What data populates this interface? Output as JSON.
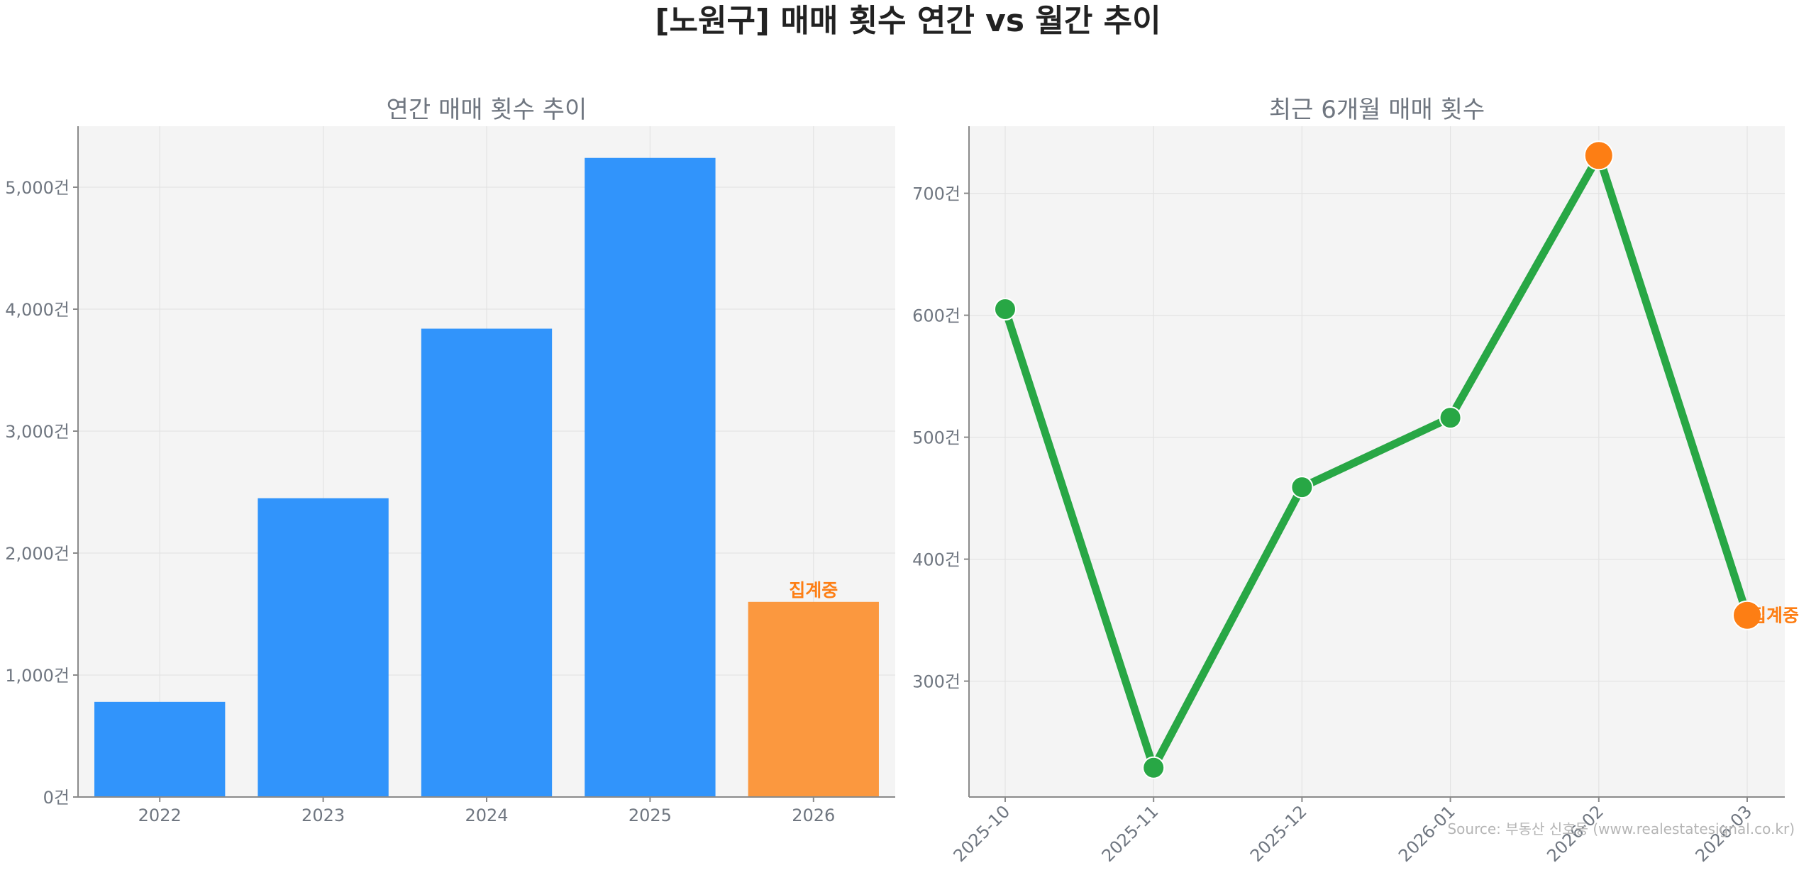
{
  "suptitle": "[노원구] 매매 횟수 연간 vs 월간 추이",
  "source": "Source: 부동산 신호등 (www.realestatesignal.co.kr)",
  "colors": {
    "bar": "#3194fb",
    "bar_partial": "#fb983f",
    "line": "#28a745",
    "point_partial": "#fd7e14",
    "annotation": "#fd7e14",
    "panel_bg": "#f4f4f4"
  },
  "chart_data": [
    {
      "type": "bar",
      "title": "연간 매매 횟수 추이",
      "categories": [
        "2022",
        "2023",
        "2024",
        "2025",
        "2026"
      ],
      "values": [
        780,
        2450,
        3840,
        5240,
        1600
      ],
      "partial_index": 4,
      "annotation": "집계중",
      "ylim": [
        0,
        5500
      ],
      "yticks": [
        0,
        1000,
        2000,
        3000,
        4000,
        5000
      ],
      "ytick_labels": [
        "0건",
        "1,000건",
        "2,000건",
        "3,000건",
        "4,000건",
        "5,000건"
      ],
      "grid": true
    },
    {
      "type": "line",
      "title": "최근 6개월 매매 횟수",
      "categories": [
        "2025-10",
        "2025-11",
        "2025-12",
        "2026-01",
        "2026-02",
        "2026-03"
      ],
      "values": [
        605,
        229,
        459,
        516,
        731,
        354
      ],
      "highlight_indices": [
        4,
        5
      ],
      "annotation": "집계중",
      "annotation_index": 5,
      "ylim": [
        205,
        755
      ],
      "yticks": [
        300,
        400,
        500,
        600,
        700
      ],
      "ytick_labels": [
        "300건",
        "400건",
        "500건",
        "600건",
        "700건"
      ],
      "grid": true
    }
  ]
}
